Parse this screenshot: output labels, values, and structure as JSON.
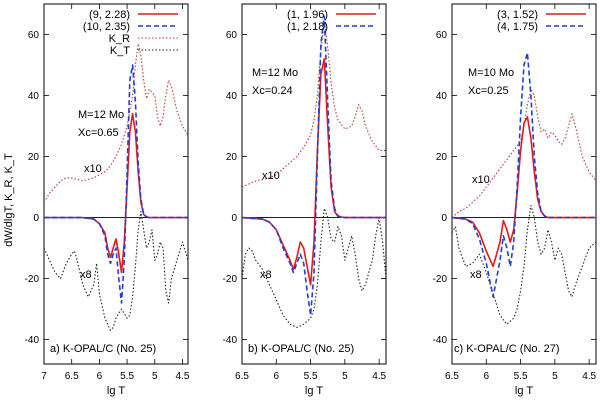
{
  "chart_data": [
    {
      "type": "line",
      "ylabel": "dW/dlgT,  K_R,  K_T",
      "xlabel": "lg T",
      "xlim": [
        7.0,
        4.4
      ],
      "ylim": [
        -48,
        70
      ],
      "xticks": [
        "7",
        "6.5",
        "6",
        "5.5",
        "5",
        "4.5"
      ],
      "xtick_values": [
        7.0,
        6.5,
        6.0,
        5.5,
        5.0,
        4.5
      ],
      "yticks": [
        "-40",
        "-20",
        "0",
        "20",
        "40",
        "60"
      ],
      "ytick_values": [
        -40,
        -20,
        0,
        20,
        40,
        60
      ],
      "annotations": {
        "mass": "M=12 Mo",
        "xc": "Xc=0.65",
        "kr_scale": "x10",
        "kt_scale": "x8",
        "label": "a) K-OPAL/C (No. 25)"
      },
      "legend_position": "top-right",
      "series": [
        {
          "name": "(9, 2.28)",
          "color": "#e41a1c",
          "style": "solid",
          "x": [
            7.0,
            6.5,
            6.3,
            6.1,
            6.0,
            5.9,
            5.85,
            5.8,
            5.75,
            5.7,
            5.65,
            5.6,
            5.55,
            5.5,
            5.45,
            5.4,
            5.35,
            5.3,
            5.25,
            5.2,
            5.15,
            5.1,
            5.0,
            4.9,
            4.8,
            4.6,
            4.4
          ],
          "y": [
            0,
            0,
            0,
            -0.5,
            -2,
            -5,
            -10,
            -13,
            -10,
            -7,
            -12,
            -18,
            -8,
            10,
            28,
            34,
            28,
            15,
            5,
            1,
            0.2,
            0,
            0,
            0,
            0,
            0,
            0
          ]
        },
        {
          "name": "(10, 2.35)",
          "color": "#1f3fd6",
          "style": "dashed",
          "x": [
            7.0,
            6.5,
            6.3,
            6.1,
            6.0,
            5.9,
            5.85,
            5.8,
            5.75,
            5.7,
            5.65,
            5.6,
            5.55,
            5.5,
            5.45,
            5.4,
            5.35,
            5.3,
            5.25,
            5.2,
            5.15,
            5.1,
            5.0,
            4.9,
            4.8,
            4.6,
            4.4
          ],
          "y": [
            0,
            0,
            0,
            -0.5,
            -2,
            -6,
            -12,
            -15,
            -12,
            -10,
            -20,
            -28,
            -14,
            15,
            45,
            50,
            38,
            18,
            6,
            1,
            0.2,
            0,
            0,
            0,
            0,
            0,
            0
          ]
        },
        {
          "name": "K_R",
          "color": "#c0392b",
          "style": "dotted",
          "x": [
            7.0,
            6.9,
            6.8,
            6.7,
            6.6,
            6.5,
            6.4,
            6.3,
            6.2,
            6.1,
            6.0,
            5.9,
            5.8,
            5.7,
            5.6,
            5.5,
            5.45,
            5.4,
            5.35,
            5.3,
            5.25,
            5.2,
            5.15,
            5.1,
            5.0,
            4.95,
            4.9,
            4.85,
            4.8,
            4.75,
            4.7,
            4.6,
            4.5,
            4.4
          ],
          "y": [
            5,
            8,
            10,
            12,
            13,
            13,
            12.5,
            12,
            12.5,
            13,
            14,
            15,
            17,
            20,
            24,
            30,
            35,
            40,
            50,
            57,
            53,
            45,
            39,
            42,
            40,
            33,
            30,
            33,
            40,
            45,
            43,
            35,
            30,
            27
          ]
        },
        {
          "name": "K_T",
          "color": "#222222",
          "style": "dotted",
          "x": [
            7.0,
            6.9,
            6.8,
            6.7,
            6.6,
            6.5,
            6.45,
            6.4,
            6.3,
            6.2,
            6.1,
            6.05,
            6.0,
            5.9,
            5.8,
            5.75,
            5.7,
            5.6,
            5.5,
            5.45,
            5.4,
            5.35,
            5.3,
            5.25,
            5.2,
            5.15,
            5.1,
            5.05,
            5.0,
            4.95,
            4.9,
            4.85,
            4.8,
            4.75,
            4.7,
            4.6,
            4.5,
            4.4
          ],
          "y": [
            -10,
            -14,
            -18,
            -20,
            -15,
            -12,
            -11,
            -14,
            -22,
            -26,
            -22,
            -15,
            -25,
            -33,
            -37,
            -36,
            -33,
            -30,
            -33,
            -32,
            -26,
            -16,
            -4,
            2,
            -4,
            -10,
            -8,
            -4,
            -14,
            -12,
            -8,
            -10,
            -24,
            -28,
            -20,
            -14,
            -8,
            -14
          ]
        }
      ]
    },
    {
      "type": "line",
      "xlabel": "lg T",
      "xlim": [
        6.5,
        4.4
      ],
      "ylim": [
        -48,
        70
      ],
      "xticks": [
        "6.5",
        "6",
        "5.5",
        "5",
        "4.5"
      ],
      "xtick_values": [
        6.5,
        6.0,
        5.5,
        5.0,
        4.5
      ],
      "yticks": [
        "-40",
        "-20",
        "0",
        "20",
        "40",
        "60"
      ],
      "ytick_values": [
        -40,
        -20,
        0,
        20,
        40,
        60
      ],
      "annotations": {
        "mass": "M=12 Mo",
        "xc": "Xc=0.24",
        "kr_scale": "x10",
        "kt_scale": "x8",
        "label": "b) K-OPAL/C (No. 25)"
      },
      "legend_position": "top-left",
      "series": [
        {
          "name": "(1, 1.96)",
          "color": "#e41a1c",
          "style": "solid",
          "x": [
            6.5,
            6.2,
            6.1,
            6.0,
            5.9,
            5.8,
            5.75,
            5.7,
            5.65,
            5.6,
            5.55,
            5.5,
            5.45,
            5.4,
            5.35,
            5.3,
            5.25,
            5.2,
            5.15,
            5.1,
            5.0,
            4.9,
            4.6,
            4.4
          ],
          "y": [
            0,
            -0.5,
            -1.5,
            -4,
            -9,
            -14,
            -17,
            -13,
            -8,
            -10,
            -16,
            -22,
            -8,
            22,
            47,
            52,
            30,
            10,
            2,
            0.3,
            0,
            0,
            0,
            0
          ]
        },
        {
          "name": "(1, 2.18)",
          "color": "#1f3fd6",
          "style": "dashed",
          "x": [
            6.5,
            6.2,
            6.1,
            6.0,
            5.9,
            5.8,
            5.75,
            5.7,
            5.65,
            5.6,
            5.55,
            5.5,
            5.45,
            5.4,
            5.35,
            5.3,
            5.25,
            5.2,
            5.15,
            5.1,
            5.0,
            4.9,
            4.6,
            4.4
          ],
          "y": [
            0,
            -0.5,
            -1.5,
            -4,
            -10,
            -15,
            -18,
            -15,
            -12,
            -15,
            -24,
            -32,
            -18,
            20,
            57,
            66,
            38,
            12,
            3,
            0.5,
            0,
            0,
            0,
            0
          ]
        },
        {
          "name": "K_R",
          "color": "#c0392b",
          "style": "dotted",
          "x": [
            6.5,
            6.4,
            6.3,
            6.2,
            6.1,
            6.0,
            5.9,
            5.8,
            5.7,
            5.6,
            5.5,
            5.45,
            5.4,
            5.35,
            5.3,
            5.25,
            5.2,
            5.15,
            5.1,
            5.0,
            4.9,
            4.85,
            4.8,
            4.75,
            4.7,
            4.6,
            4.5,
            4.4
          ],
          "y": [
            10,
            11,
            12,
            12.5,
            13,
            14,
            16,
            18,
            20,
            23,
            27,
            32,
            40,
            55,
            64,
            56,
            44,
            36,
            32,
            29,
            30,
            33,
            37,
            35,
            30,
            25,
            22,
            22
          ]
        },
        {
          "name": "K_T",
          "color": "#222222",
          "style": "dotted",
          "x": [
            6.5,
            6.45,
            6.4,
            6.35,
            6.3,
            6.2,
            6.1,
            6.0,
            5.9,
            5.8,
            5.7,
            5.6,
            5.5,
            5.45,
            5.4,
            5.35,
            5.3,
            5.25,
            5.2,
            5.15,
            5.1,
            5.05,
            5.0,
            4.95,
            4.9,
            4.85,
            4.8,
            4.75,
            4.7,
            4.6,
            4.55,
            4.5,
            4.45,
            4.4
          ],
          "y": [
            -20,
            -12,
            -10,
            -11,
            -14,
            -17,
            -22,
            -27,
            -32,
            -35,
            -36,
            -35,
            -33,
            -30,
            -22,
            -8,
            3,
            0,
            -7,
            -8,
            -3,
            -6,
            -14,
            -10,
            -6,
            -12,
            -20,
            -24,
            -22,
            -14,
            -6,
            0,
            -8,
            -20
          ]
        }
      ]
    },
    {
      "type": "line",
      "xlabel": "lg T",
      "xlim": [
        6.5,
        4.4
      ],
      "ylim": [
        -48,
        70
      ],
      "xticks": [
        "6.5",
        "6",
        "5.5",
        "5",
        "4.5"
      ],
      "xtick_values": [
        6.5,
        6.0,
        5.5,
        5.0,
        4.5
      ],
      "yticks": [
        "-40",
        "-20",
        "0",
        "20",
        "40",
        "60"
      ],
      "ytick_values": [
        -40,
        -20,
        0,
        20,
        40,
        60
      ],
      "annotations": {
        "mass": "M=10 Mo",
        "xc": "Xc=0.25",
        "kr_scale": "x10",
        "kt_scale": "x8",
        "label": "c) K-OPAL/C (No. 27)"
      },
      "legend_position": "top-left",
      "series": [
        {
          "name": "(3, 1.52)",
          "color": "#e41a1c",
          "style": "solid",
          "x": [
            6.5,
            6.3,
            6.2,
            6.1,
            6.0,
            5.9,
            5.85,
            5.8,
            5.75,
            5.7,
            5.65,
            5.6,
            5.55,
            5.5,
            5.45,
            5.4,
            5.35,
            5.3,
            5.25,
            5.2,
            5.15,
            5.1,
            5.0,
            4.9,
            4.6,
            4.4
          ],
          "y": [
            0,
            -0.5,
            -1.5,
            -5,
            -11,
            -16,
            -12,
            -8,
            -1,
            -4,
            -8,
            -4,
            8,
            22,
            31,
            33,
            26,
            15,
            6,
            2,
            0.5,
            0,
            0,
            0,
            0,
            0
          ]
        },
        {
          "name": "(4, 1.75)",
          "color": "#1f3fd6",
          "style": "dashed",
          "x": [
            6.5,
            6.3,
            6.2,
            6.1,
            6.0,
            5.9,
            5.85,
            5.8,
            5.75,
            5.7,
            5.65,
            5.6,
            5.55,
            5.5,
            5.45,
            5.4,
            5.35,
            5.3,
            5.25,
            5.2,
            5.15,
            5.1,
            5.0,
            4.9,
            4.6,
            4.4
          ],
          "y": [
            0,
            -0.5,
            -2,
            -7,
            -15,
            -26,
            -20,
            -14,
            -6,
            -10,
            -16,
            -8,
            10,
            33,
            50,
            54,
            40,
            20,
            8,
            2,
            0.5,
            0,
            0,
            0,
            0,
            0
          ]
        },
        {
          "name": "K_R",
          "color": "#c0392b",
          "style": "dotted",
          "x": [
            6.5,
            6.4,
            6.3,
            6.2,
            6.1,
            6.0,
            5.9,
            5.8,
            5.7,
            5.6,
            5.5,
            5.45,
            5.4,
            5.35,
            5.3,
            5.25,
            5.2,
            5.15,
            5.1,
            5.05,
            5.0,
            4.95,
            4.9,
            4.85,
            4.8,
            4.75,
            4.7,
            4.6,
            4.5,
            4.4
          ],
          "y": [
            0,
            2,
            3,
            5,
            7,
            10,
            13,
            16,
            19,
            22,
            25,
            30,
            37,
            42,
            40,
            33,
            28,
            29,
            26,
            28,
            27,
            25,
            24,
            26,
            30,
            34,
            30,
            20,
            15,
            12
          ]
        },
        {
          "name": "K_T",
          "color": "#222222",
          "style": "dotted",
          "x": [
            6.5,
            6.45,
            6.4,
            6.3,
            6.2,
            6.1,
            6.0,
            5.9,
            5.8,
            5.7,
            5.6,
            5.55,
            5.5,
            5.45,
            5.4,
            5.35,
            5.3,
            5.25,
            5.2,
            5.15,
            5.1,
            5.05,
            5.0,
            4.95,
            4.9,
            4.85,
            4.8,
            4.75,
            4.7,
            4.6,
            4.5,
            4.4
          ],
          "y": [
            -5,
            -3,
            -10,
            -16,
            -15,
            -12,
            -18,
            -25,
            -32,
            -35,
            -33,
            -30,
            -24,
            -16,
            -4,
            4,
            0,
            -8,
            -12,
            -10,
            -4,
            -8,
            -14,
            -10,
            -12,
            -18,
            -24,
            -26,
            -22,
            -16,
            -10,
            -8
          ]
        }
      ]
    }
  ]
}
